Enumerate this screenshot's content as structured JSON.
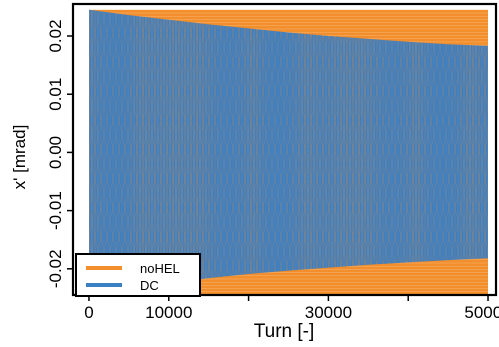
{
  "chart_data": {
    "type": "area",
    "xlabel": "Turn [-]",
    "ylabel": "x' [mrad]",
    "xlim": [
      -2000,
      51000
    ],
    "ylim": [
      -0.0245,
      0.0255
    ],
    "x_ticks": [
      0,
      10000,
      20000,
      30000,
      40000,
      50000
    ],
    "x_tick_labels": [
      "0",
      "10000",
      "",
      "30000",
      "",
      "50000"
    ],
    "y_ticks": [
      -0.02,
      -0.01,
      0.0,
      0.01,
      0.02
    ],
    "y_tick_labels": [
      "-0.02",
      "-0.01",
      "0.00",
      "0.01",
      "0.02"
    ],
    "grid": false,
    "legend_position": "bottom-left",
    "series": [
      {
        "name": "noHEL",
        "color": "#f28e2b",
        "x": [
          0,
          50000
        ],
        "upper": [
          0.0245,
          0.0245
        ],
        "lower": [
          -0.0245,
          -0.0245
        ]
      },
      {
        "name": "DC",
        "color": "#3b7fc4",
        "x": [
          0,
          5000,
          10000,
          15000,
          20000,
          25000,
          30000,
          35000,
          40000,
          45000,
          50000
        ],
        "upper": [
          0.0245,
          0.0236,
          0.0228,
          0.022,
          0.0213,
          0.0206,
          0.02,
          0.0195,
          0.019,
          0.0186,
          0.0183
        ],
        "lower": [
          -0.0245,
          -0.0234,
          -0.0225,
          -0.0216,
          -0.0209,
          -0.0203,
          -0.0198,
          -0.0193,
          -0.0189,
          -0.0185,
          -0.0182
        ]
      }
    ]
  }
}
